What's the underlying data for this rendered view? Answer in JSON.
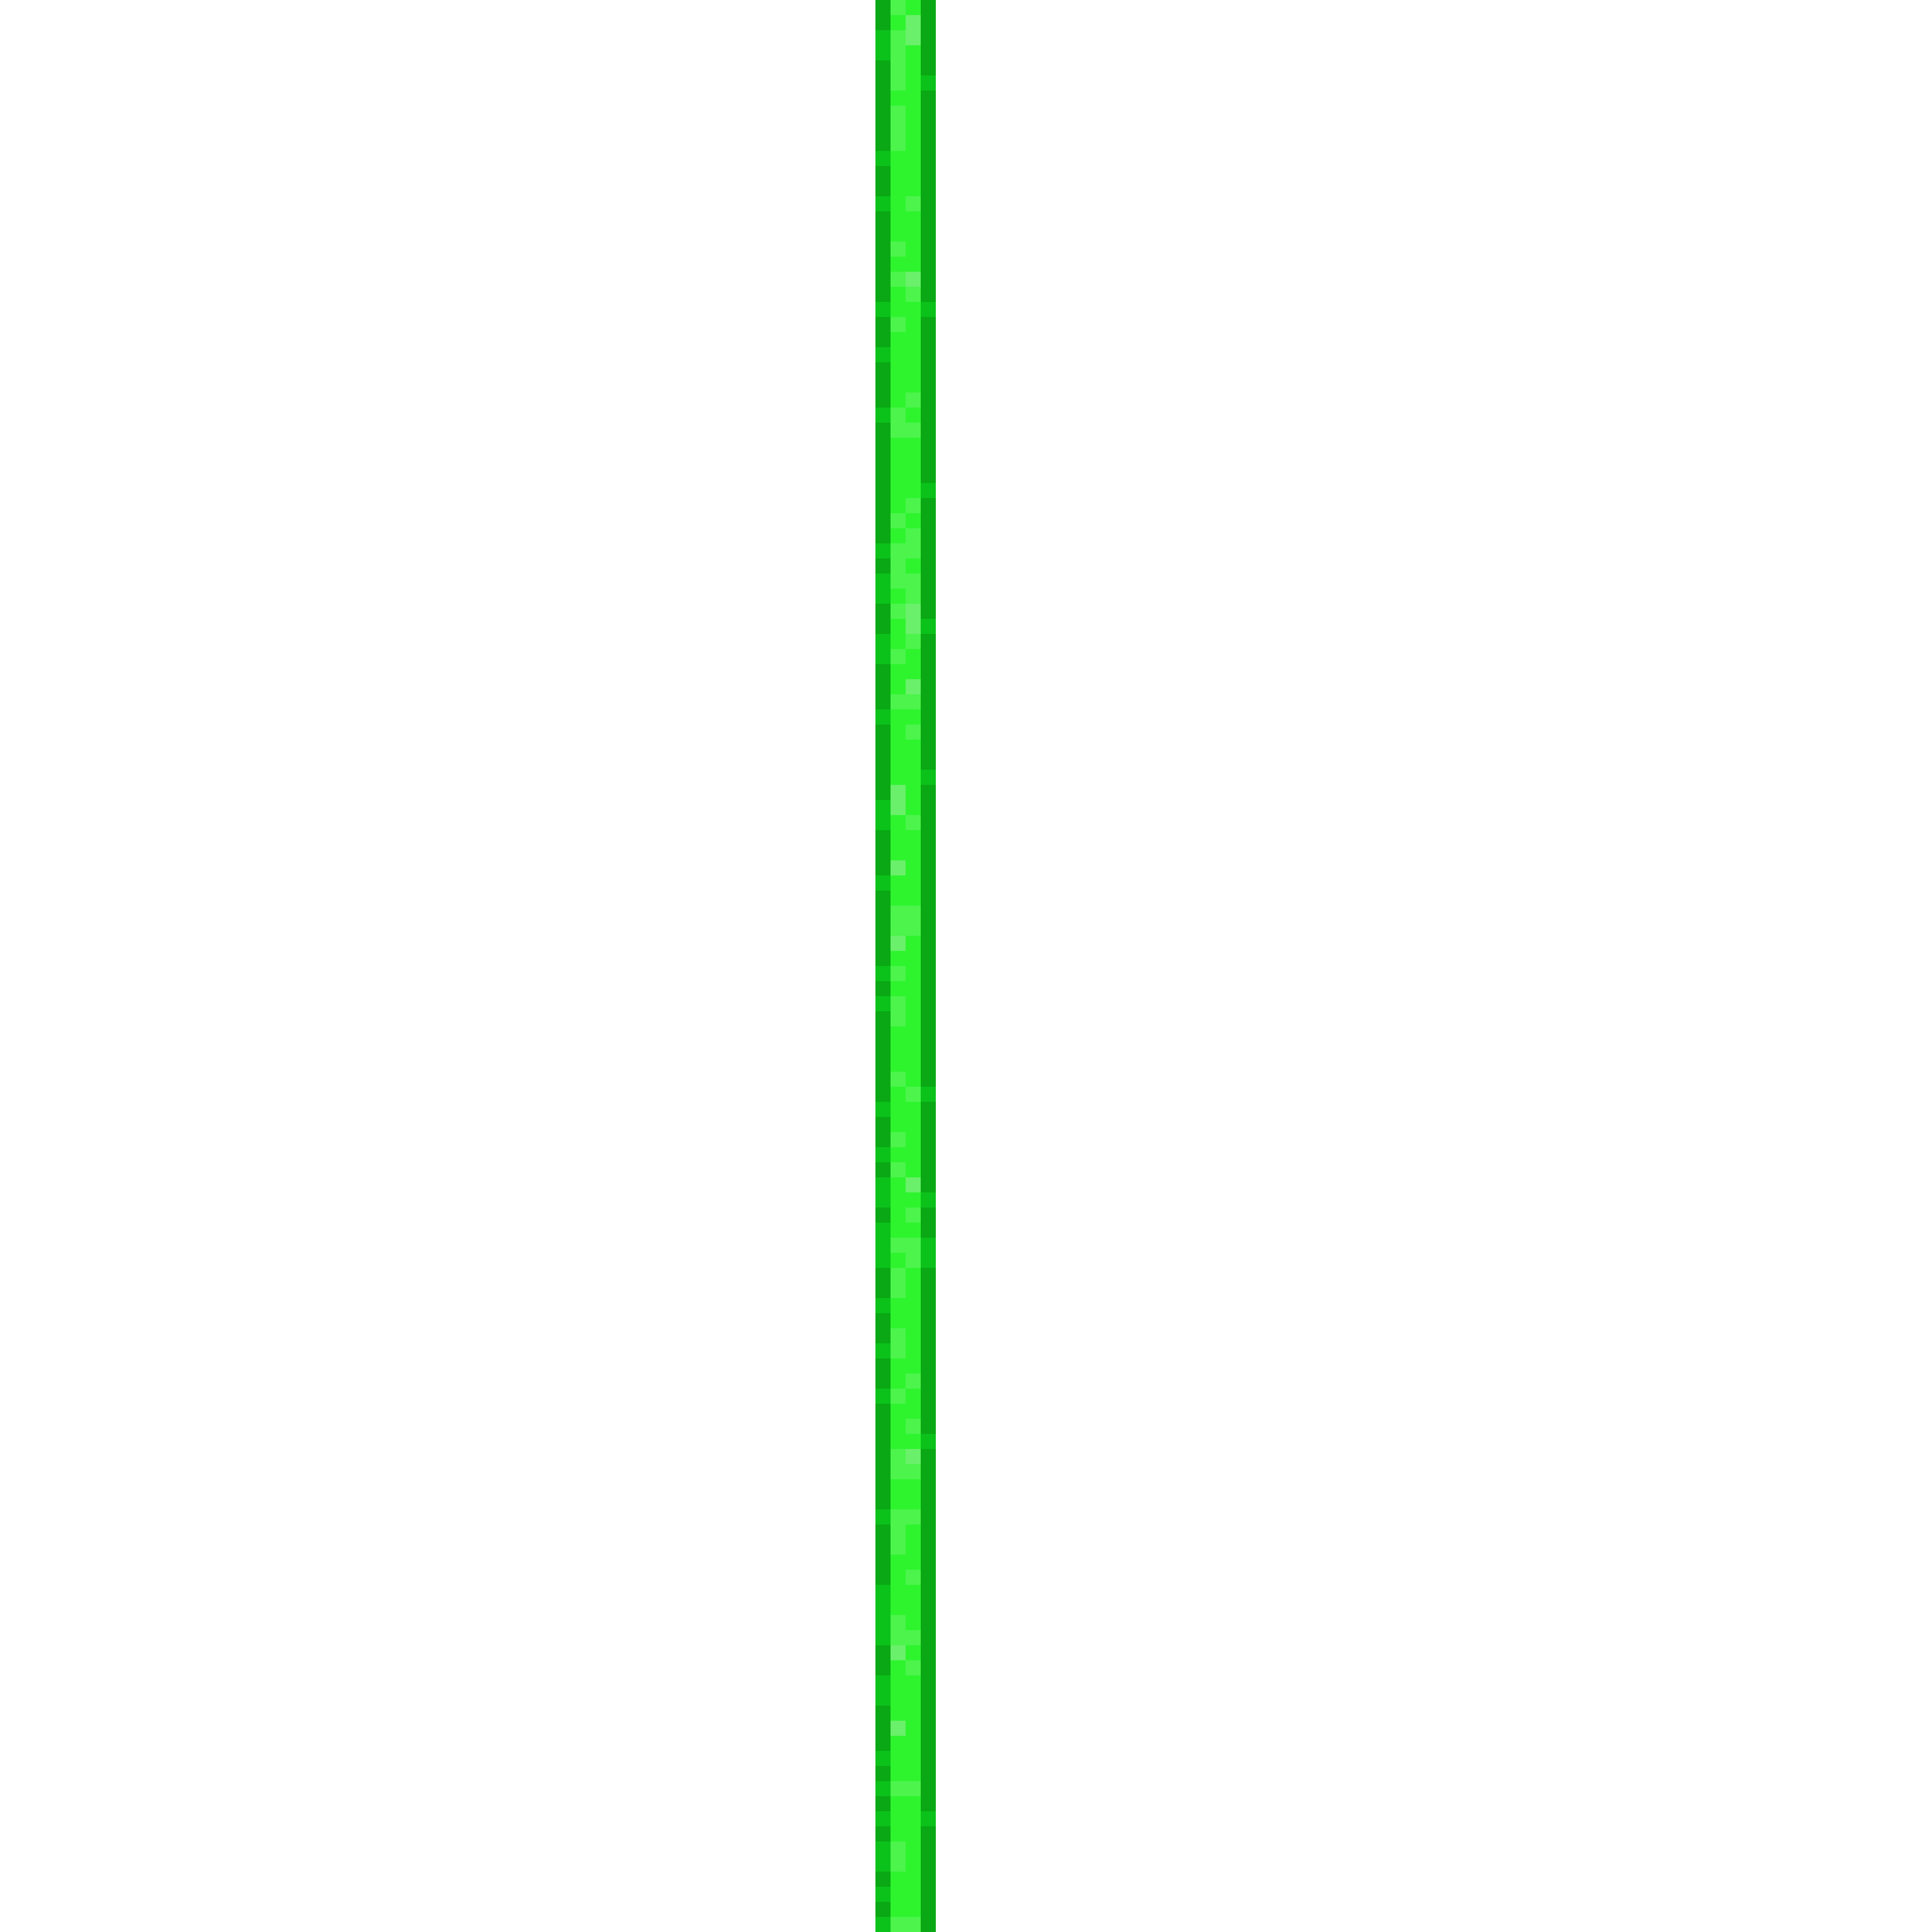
{
  "canvas": {
    "background": "#ffffff"
  },
  "pixel_bar": {
    "orientation": "vertical",
    "colors": {
      "edge_dark": "#0aa814",
      "edge_mid": "#0bc21a",
      "fill": "#2ef42e",
      "fill_light": "#4cf44c",
      "highlight": "#6af06a"
    }
  }
}
